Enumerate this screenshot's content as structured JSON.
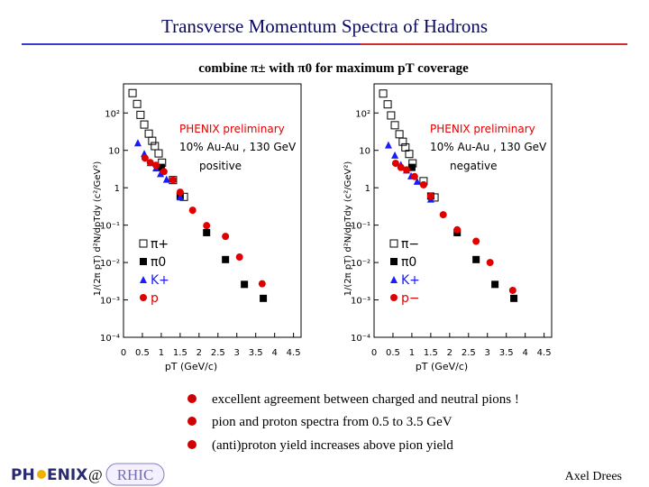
{
  "title": "Transverse Momentum Spectra of Hadrons",
  "subtitle": "combine π± with π0 for maximum pT coverage",
  "bullets": [
    "excellent agreement between charged and neutral pions !",
    "pion and proton spectra from 0.5 to 3.5 GeV",
    "(anti)proton yield increases above  pion yield"
  ],
  "logo": {
    "left": "PH",
    "right": "ENIX",
    "at": "@",
    "rhic": "RHIC"
  },
  "footer": "Axel Drees",
  "chart_data": [
    {
      "type": "scatter",
      "annotations": [
        "PHENIX preliminary",
        "10% Au-Au , 130 GeV",
        "positive"
      ],
      "x_label": "pT (GeV/c)",
      "y_label": "1/(2π pT) d²N/dpTdy (c²/GeV²)",
      "log_y": true,
      "xlim": [
        0,
        4.7
      ],
      "ylim": [
        0.0001,
        600
      ],
      "xticks": [
        0,
        0.5,
        1,
        1.5,
        2,
        2.5,
        3,
        3.5,
        4,
        4.5
      ],
      "yticks": [
        {
          "value": 0.0001,
          "label": "10⁻⁴"
        },
        {
          "value": 0.001,
          "label": "10⁻³"
        },
        {
          "value": 0.01,
          "label": "10⁻²"
        },
        {
          "value": 0.1,
          "label": "10⁻¹"
        },
        1,
        10,
        {
          "value": 100,
          "label": "10²"
        }
      ],
      "series": [
        {
          "name": "π+",
          "color": "#000000",
          "marker": "open-square",
          "x": [
            0.24,
            0.36,
            0.45,
            0.55,
            0.67,
            0.76,
            0.83,
            0.93,
            1.02,
            1.31,
            1.6
          ],
          "values": [
            340,
            174,
            89,
            49,
            28,
            18,
            13,
            8.3,
            4.7,
            1.6,
            0.57
          ]
        },
        {
          "name": "π0",
          "color": "#000000",
          "marker": "square",
          "x": [
            1.0,
            1.5,
            2.2,
            2.7,
            3.2,
            3.7
          ],
          "values": [
            3.5,
            0.6,
            0.063,
            0.012,
            0.0026,
            0.0011
          ]
        },
        {
          "name": "K+",
          "color": "#1a1aff",
          "marker": "triangle",
          "x": [
            0.38,
            0.55,
            0.71,
            0.86,
            0.98,
            1.14,
            1.5
          ],
          "values": [
            16,
            8.3,
            4.7,
            3.4,
            2.4,
            1.7,
            0.57
          ]
        },
        {
          "name": "p",
          "color": "#e00000",
          "marker": "circle",
          "x": [
            0.57,
            0.71,
            0.86,
            1.07,
            1.31,
            1.5,
            1.83,
            2.2,
            2.7,
            3.07,
            3.67
          ],
          "values": [
            6.2,
            4.7,
            4,
            2.7,
            1.6,
            0.76,
            0.25,
            0.097,
            0.05,
            0.014,
            0.0027
          ]
        }
      ]
    },
    {
      "type": "scatter",
      "annotations": [
        "PHENIX preliminary",
        "10% Au-Au , 130 GeV",
        "negative"
      ],
      "x_label": "pT (GeV/c)",
      "y_label": "1/(2π pT) d²N/dpTdy (c²/GeV²)",
      "log_y": true,
      "xlim": [
        0,
        4.7
      ],
      "ylim": [
        0.0001,
        600
      ],
      "xticks": [
        0,
        0.5,
        1,
        1.5,
        2,
        2.5,
        3,
        3.5,
        4,
        4.5
      ],
      "yticks": [
        {
          "value": 0.0001,
          "label": "10⁻⁴"
        },
        {
          "value": 0.001,
          "label": "10⁻³"
        },
        {
          "value": 0.01,
          "label": "10⁻²"
        },
        {
          "value": 0.1,
          "label": "10⁻¹"
        },
        1,
        10,
        {
          "value": 100,
          "label": "10²"
        }
      ],
      "series": [
        {
          "name": "π−",
          "color": "#000000",
          "marker": "open-square",
          "x": [
            0.24,
            0.36,
            0.45,
            0.55,
            0.67,
            0.76,
            0.83,
            0.93,
            1.02,
            1.31,
            1.6
          ],
          "values": [
            330,
            170,
            86,
            47,
            27,
            17,
            12,
            8,
            4.5,
            1.5,
            0.55
          ]
        },
        {
          "name": "π0",
          "color": "#000000",
          "marker": "square",
          "x": [
            1.0,
            1.5,
            2.2,
            2.7,
            3.2,
            3.7
          ],
          "values": [
            3.5,
            0.6,
            0.063,
            0.012,
            0.0026,
            0.0011
          ]
        },
        {
          "name": "K+",
          "color": "#1a1aff",
          "marker": "triangle",
          "x": [
            0.38,
            0.55,
            0.71,
            0.86,
            0.98,
            1.14,
            1.5
          ],
          "values": [
            14,
            7.5,
            4.2,
            3,
            2.1,
            1.5,
            0.5
          ]
        },
        {
          "name": "p−",
          "color": "#e00000",
          "marker": "circle",
          "x": [
            0.57,
            0.71,
            0.86,
            1.07,
            1.31,
            1.5,
            1.83,
            2.2,
            2.7,
            3.07,
            3.67
          ],
          "values": [
            4.5,
            3.5,
            3,
            2,
            1.2,
            0.6,
            0.19,
            0.075,
            0.037,
            0.01,
            0.0018
          ]
        }
      ]
    }
  ]
}
